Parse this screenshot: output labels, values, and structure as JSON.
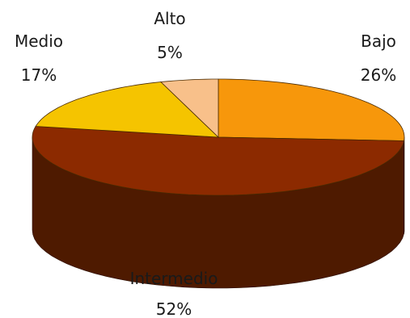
{
  "chart_data": {
    "type": "pie",
    "style": "3d",
    "categories": [
      "Bajo",
      "Intermedio",
      "Medio",
      "Alto"
    ],
    "values": [
      26,
      52,
      17,
      5
    ],
    "value_labels": [
      "26%",
      "52%",
      "17%",
      "5%"
    ],
    "colors": {
      "Bajo": "#f7970b",
      "Intermedio": "#8c2a00",
      "Medio": "#f5c400",
      "Alto": "#f8c08a"
    },
    "side_colors": {
      "Intermedio": "#4e1a00",
      "Bajo": "#b86a00",
      "Medio": "#b08a00"
    },
    "legend": "none",
    "labels_outside": true
  }
}
